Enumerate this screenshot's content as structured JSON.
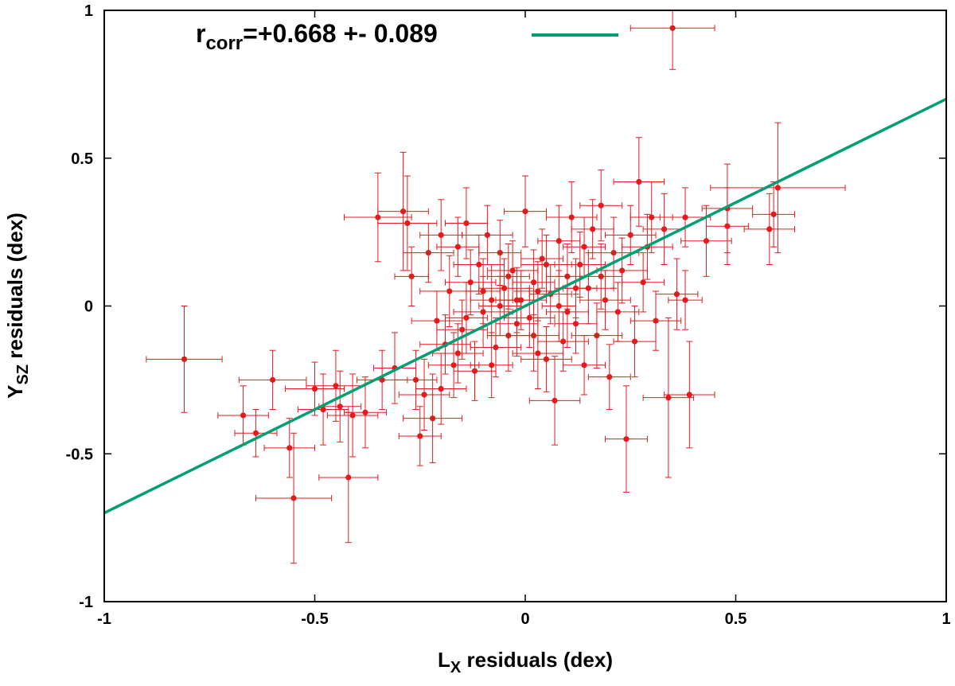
{
  "chart_data": {
    "type": "scatter",
    "title": "",
    "xlabel": {
      "main": "L",
      "sub": "X",
      "rest": " residuals (dex)"
    },
    "ylabel": {
      "main": "Y",
      "sub": "SZ",
      "rest": " residuals (dex)"
    },
    "xlim": [
      -1,
      1
    ],
    "ylim": [
      -1,
      1
    ],
    "xticks": [
      -1,
      -0.5,
      0,
      0.5,
      1
    ],
    "yticks": [
      -1,
      -0.5,
      0,
      0.5,
      1
    ],
    "xtick_labels": [
      "-1",
      "-0.5",
      "0",
      "0.5",
      "1"
    ],
    "ytick_labels": [
      "-1",
      "-0.5",
      "0",
      "0.5",
      "1"
    ],
    "grid": false,
    "legend": {
      "placement": "top-left",
      "main": "r",
      "sub": "corr",
      "rest": "=+0.668 +- 0.089"
    },
    "colors": {
      "points": "#e41a1c",
      "fit": "#009e73",
      "frame": "#000000"
    },
    "fit_line": {
      "name": "",
      "slope": 0.7,
      "intercept": 0.0
    },
    "series": [
      {
        "points": [
          [
            -0.81,
            -0.18,
            0.09,
            0.18
          ],
          [
            -0.67,
            -0.37,
            0.06,
            0.1
          ],
          [
            -0.64,
            -0.43,
            0.05,
            0.08
          ],
          [
            -0.6,
            -0.25,
            0.08,
            0.1
          ],
          [
            -0.56,
            -0.48,
            0.06,
            0.1
          ],
          [
            -0.55,
            -0.65,
            0.09,
            0.22
          ],
          [
            -0.5,
            -0.28,
            0.07,
            0.09
          ],
          [
            -0.48,
            -0.35,
            0.06,
            0.12
          ],
          [
            -0.45,
            -0.27,
            0.07,
            0.12
          ],
          [
            -0.44,
            -0.34,
            0.05,
            0.12
          ],
          [
            -0.42,
            -0.58,
            0.07,
            0.22
          ],
          [
            -0.41,
            -0.37,
            0.06,
            0.14
          ],
          [
            -0.38,
            -0.36,
            0.05,
            0.12
          ],
          [
            -0.35,
            0.3,
            0.08,
            0.15
          ],
          [
            -0.34,
            -0.25,
            0.06,
            0.1
          ],
          [
            -0.31,
            -0.21,
            0.05,
            0.12
          ],
          [
            -0.29,
            0.32,
            0.06,
            0.2
          ],
          [
            -0.28,
            0.28,
            0.07,
            0.16
          ],
          [
            -0.27,
            0.1,
            0.04,
            0.1
          ],
          [
            -0.26,
            -0.25,
            0.05,
            0.1
          ],
          [
            -0.25,
            -0.44,
            0.05,
            0.1
          ],
          [
            -0.24,
            -0.3,
            0.06,
            0.12
          ],
          [
            -0.23,
            0.18,
            0.06,
            0.1
          ],
          [
            -0.22,
            -0.38,
            0.07,
            0.15
          ],
          [
            -0.21,
            -0.05,
            0.06,
            0.1
          ],
          [
            -0.2,
            0.24,
            0.05,
            0.12
          ],
          [
            -0.19,
            -0.13,
            0.06,
            0.1
          ],
          [
            -0.18,
            0.05,
            0.07,
            0.12
          ],
          [
            -0.17,
            -0.2,
            0.06,
            0.11
          ],
          [
            -0.16,
            0.2,
            0.05,
            0.1
          ],
          [
            -0.15,
            -0.08,
            0.06,
            0.1
          ],
          [
            -0.14,
            0.28,
            0.05,
            0.12
          ],
          [
            -0.13,
            0.08,
            0.06,
            0.11
          ],
          [
            -0.12,
            -0.22,
            0.05,
            0.1
          ],
          [
            -0.11,
            0.14,
            0.06,
            0.1
          ],
          [
            -0.1,
            -0.02,
            0.07,
            0.12
          ],
          [
            -0.09,
            0.24,
            0.06,
            0.1
          ],
          [
            -0.08,
            0.02,
            0.05,
            0.12
          ],
          [
            -0.07,
            -0.14,
            0.06,
            0.1
          ],
          [
            -0.06,
            0.18,
            0.05,
            0.11
          ],
          [
            -0.05,
            0.06,
            0.06,
            0.1
          ],
          [
            -0.04,
            -0.1,
            0.05,
            0.12
          ],
          [
            -0.03,
            0.12,
            0.06,
            0.1
          ],
          [
            -0.02,
            -0.06,
            0.05,
            0.11
          ],
          [
            -0.01,
            0.02,
            0.06,
            0.1
          ],
          [
            0.0,
            0.32,
            0.05,
            0.12
          ],
          [
            0.01,
            -0.04,
            0.06,
            0.1
          ],
          [
            0.02,
            0.08,
            0.05,
            0.11
          ],
          [
            0.03,
            -0.16,
            0.06,
            0.12
          ],
          [
            0.04,
            0.16,
            0.05,
            0.1
          ],
          [
            0.05,
            -0.18,
            0.06,
            0.11
          ],
          [
            0.06,
            0.04,
            0.05,
            0.1
          ],
          [
            0.07,
            -0.32,
            0.06,
            0.15
          ],
          [
            0.08,
            0.22,
            0.05,
            0.12
          ],
          [
            0.09,
            -0.12,
            0.06,
            0.1
          ],
          [
            0.1,
            0.1,
            0.05,
            0.11
          ],
          [
            0.11,
            0.3,
            0.06,
            0.12
          ],
          [
            0.12,
            -0.06,
            0.05,
            0.1
          ],
          [
            0.13,
            0.14,
            0.06,
            0.11
          ],
          [
            0.14,
            -0.2,
            0.05,
            0.1
          ],
          [
            0.15,
            0.06,
            0.06,
            0.12
          ],
          [
            0.16,
            0.26,
            0.05,
            0.1
          ],
          [
            0.17,
            -0.1,
            0.06,
            0.11
          ],
          [
            0.18,
            0.34,
            0.05,
            0.12
          ],
          [
            0.19,
            0.02,
            0.06,
            0.1
          ],
          [
            0.2,
            -0.24,
            0.05,
            0.11
          ],
          [
            0.21,
            0.18,
            0.06,
            0.12
          ],
          [
            0.22,
            -0.02,
            0.05,
            0.1
          ],
          [
            0.23,
            0.12,
            0.06,
            0.11
          ],
          [
            0.24,
            -0.45,
            0.05,
            0.18
          ],
          [
            0.25,
            0.24,
            0.06,
            0.1
          ],
          [
            0.26,
            -0.12,
            0.05,
            0.12
          ],
          [
            0.27,
            0.42,
            0.06,
            0.15
          ],
          [
            0.28,
            0.08,
            0.05,
            0.1
          ],
          [
            0.29,
            0.2,
            0.06,
            0.11
          ],
          [
            0.3,
            0.3,
            0.05,
            0.12
          ],
          [
            0.31,
            -0.05,
            0.06,
            0.1
          ],
          [
            0.33,
            0.26,
            0.05,
            0.12
          ],
          [
            0.34,
            -0.31,
            0.06,
            0.27
          ],
          [
            0.35,
            0.94,
            0.1,
            0.14
          ],
          [
            0.36,
            0.04,
            0.05,
            0.12
          ],
          [
            0.38,
            0.3,
            0.06,
            0.1
          ],
          [
            0.38,
            0.02,
            0.04,
            0.1
          ],
          [
            0.39,
            -0.3,
            0.06,
            0.18
          ],
          [
            0.43,
            0.22,
            0.06,
            0.12
          ],
          [
            0.48,
            0.27,
            0.05,
            0.13
          ],
          [
            0.48,
            0.33,
            0.06,
            0.15
          ],
          [
            0.58,
            0.26,
            0.06,
            0.12
          ],
          [
            0.59,
            0.31,
            0.05,
            0.11
          ],
          [
            0.6,
            0.4,
            0.16,
            0.22
          ],
          [
            -0.02,
            0.02,
            0.04,
            0.11
          ],
          [
            0.03,
            0.05,
            0.05,
            0.1
          ],
          [
            0.08,
            0.0,
            0.04,
            0.12
          ],
          [
            -0.06,
            0.0,
            0.05,
            0.1
          ],
          [
            -0.1,
            0.05,
            0.04,
            0.11
          ],
          [
            0.12,
            0.06,
            0.05,
            0.1
          ],
          [
            -0.14,
            -0.04,
            0.05,
            0.12
          ],
          [
            0.05,
            0.14,
            0.06,
            0.1
          ],
          [
            -0.04,
            0.1,
            0.05,
            0.11
          ],
          [
            0.1,
            -0.02,
            0.05,
            0.12
          ],
          [
            -0.16,
            -0.16,
            0.06,
            0.1
          ],
          [
            0.18,
            0.1,
            0.05,
            0.11
          ],
          [
            -0.2,
            -0.28,
            0.06,
            0.12
          ],
          [
            0.14,
            0.2,
            0.05,
            0.1
          ],
          [
            -0.08,
            -0.2,
            0.05,
            0.11
          ],
          [
            0.02,
            -0.1,
            0.06,
            0.12
          ]
        ]
      }
    ]
  }
}
